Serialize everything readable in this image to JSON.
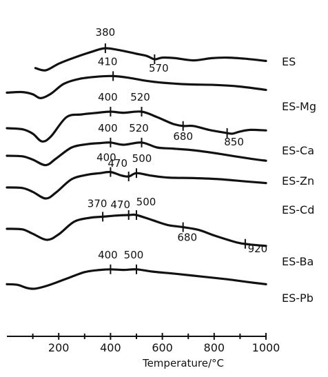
{
  "chart_data": {
    "type": "line",
    "title": "",
    "xlabel": "Temperature/°C",
    "ylabel": "",
    "xlim": [
      0,
      1000
    ],
    "x_ticks": [
      200,
      400,
      600,
      800,
      1000
    ],
    "grid": false,
    "series": [
      {
        "name": "ES",
        "points": [
          [
            110,
            0.84
          ],
          [
            150,
            0.8
          ],
          [
            200,
            0.92
          ],
          [
            260,
            1.03
          ],
          [
            330,
            1.14
          ],
          [
            380,
            1.2
          ],
          [
            440,
            1.16
          ],
          [
            500,
            1.1
          ],
          [
            540,
            1.06
          ],
          [
            570,
            1.0
          ],
          [
            600,
            1.03
          ],
          [
            650,
            1.02
          ],
          [
            720,
            0.98
          ],
          [
            790,
            1.02
          ],
          [
            850,
            1.03
          ],
          [
            920,
            1.01
          ],
          [
            1000,
            0.97
          ]
        ],
        "peaks": [
          {
            "x": 380,
            "label": "380"
          },
          {
            "x": 570,
            "label": "570"
          }
        ]
      },
      {
        "name": "ES-Mg",
        "points": [
          [
            0,
            0.92
          ],
          [
            60,
            0.93
          ],
          [
            100,
            0.89
          ],
          [
            130,
            0.82
          ],
          [
            170,
            0.9
          ],
          [
            220,
            1.08
          ],
          [
            280,
            1.17
          ],
          [
            350,
            1.21
          ],
          [
            410,
            1.22
          ],
          [
            470,
            1.19
          ],
          [
            530,
            1.14
          ],
          [
            600,
            1.1
          ],
          [
            700,
            1.07
          ],
          [
            800,
            1.06
          ],
          [
            900,
            1.03
          ],
          [
            1000,
            0.97
          ]
        ],
        "peaks": [
          {
            "x": 410,
            "label": "410"
          }
        ]
      },
      {
        "name": "ES-Ca",
        "points": [
          [
            0,
            0.9
          ],
          [
            60,
            0.88
          ],
          [
            100,
            0.8
          ],
          [
            135,
            0.66
          ],
          [
            170,
            0.75
          ],
          [
            230,
            1.1
          ],
          [
            290,
            1.15
          ],
          [
            350,
            1.18
          ],
          [
            400,
            1.2
          ],
          [
            450,
            1.18
          ],
          [
            520,
            1.2
          ],
          [
            580,
            1.1
          ],
          [
            640,
            0.98
          ],
          [
            680,
            0.94
          ],
          [
            720,
            0.94
          ],
          [
            780,
            0.87
          ],
          [
            840,
            0.82
          ],
          [
            870,
            0.8
          ],
          [
            900,
            0.84
          ],
          [
            940,
            0.87
          ],
          [
            1000,
            0.86
          ]
        ],
        "peaks": [
          {
            "x": 400,
            "label": "400"
          },
          {
            "x": 520,
            "label": "520"
          },
          {
            "x": 680,
            "label": "680"
          },
          {
            "x": 850,
            "label": "850"
          }
        ]
      },
      {
        "name": "ES-Zn",
        "points": [
          [
            0,
            0.85
          ],
          [
            60,
            0.84
          ],
          [
            100,
            0.78
          ],
          [
            150,
            0.68
          ],
          [
            190,
            0.8
          ],
          [
            250,
            1.0
          ],
          [
            310,
            1.06
          ],
          [
            360,
            1.08
          ],
          [
            400,
            1.09
          ],
          [
            450,
            1.05
          ],
          [
            520,
            1.09
          ],
          [
            580,
            1.0
          ],
          [
            640,
            0.98
          ],
          [
            720,
            0.95
          ],
          [
            800,
            0.9
          ],
          [
            880,
            0.84
          ],
          [
            950,
            0.79
          ],
          [
            1000,
            0.76
          ]
        ],
        "peaks": [
          {
            "x": 400,
            "label": "400"
          },
          {
            "x": 520,
            "label": "520"
          }
        ]
      },
      {
        "name": "ES-Cd",
        "points": [
          [
            0,
            0.75
          ],
          [
            60,
            0.74
          ],
          [
            100,
            0.67
          ],
          [
            150,
            0.55
          ],
          [
            190,
            0.66
          ],
          [
            250,
            0.9
          ],
          [
            310,
            0.98
          ],
          [
            360,
            1.01
          ],
          [
            400,
            1.03
          ],
          [
            440,
            0.97
          ],
          [
            470,
            0.95
          ],
          [
            500,
            1.01
          ],
          [
            550,
            0.97
          ],
          [
            620,
            0.93
          ],
          [
            720,
            0.92
          ],
          [
            820,
            0.9
          ],
          [
            920,
            0.86
          ],
          [
            1000,
            0.83
          ]
        ],
        "peaks": [
          {
            "x": 400,
            "label": "400"
          },
          {
            "x": 470,
            "label": "470"
          },
          {
            "x": 500,
            "label": "500"
          }
        ]
      },
      {
        "name": "ES-Ba",
        "points": [
          [
            0,
            0.65
          ],
          [
            60,
            0.64
          ],
          [
            100,
            0.56
          ],
          [
            155,
            0.45
          ],
          [
            200,
            0.55
          ],
          [
            260,
            0.78
          ],
          [
            320,
            0.85
          ],
          [
            370,
            0.87
          ],
          [
            420,
            0.89
          ],
          [
            470,
            0.9
          ],
          [
            500,
            0.9
          ],
          [
            560,
            0.81
          ],
          [
            620,
            0.72
          ],
          [
            680,
            0.68
          ],
          [
            740,
            0.63
          ],
          [
            800,
            0.53
          ],
          [
            860,
            0.44
          ],
          [
            900,
            0.39
          ],
          [
            950,
            0.36
          ],
          [
            1000,
            0.34
          ]
        ],
        "peaks": [
          {
            "x": 370,
            "label": "370"
          },
          {
            "x": 470,
            "label": "470"
          },
          {
            "x": 500,
            "label": "500"
          },
          {
            "x": 680,
            "label": "680"
          },
          {
            "x": 920,
            "label": "920"
          }
        ]
      },
      {
        "name": "ES-Pb",
        "points": [
          [
            0,
            0.32
          ],
          [
            40,
            0.31
          ],
          [
            80,
            0.25
          ],
          [
            110,
            0.24
          ],
          [
            160,
            0.3
          ],
          [
            230,
            0.42
          ],
          [
            300,
            0.54
          ],
          [
            360,
            0.58
          ],
          [
            400,
            0.59
          ],
          [
            450,
            0.58
          ],
          [
            500,
            0.59
          ],
          [
            560,
            0.55
          ],
          [
            650,
            0.51
          ],
          [
            750,
            0.46
          ],
          [
            850,
            0.41
          ],
          [
            930,
            0.36
          ],
          [
            1000,
            0.32
          ]
        ],
        "peaks": [
          {
            "x": 400,
            "label": "400"
          },
          {
            "x": 500,
            "label": "500"
          }
        ]
      }
    ]
  }
}
